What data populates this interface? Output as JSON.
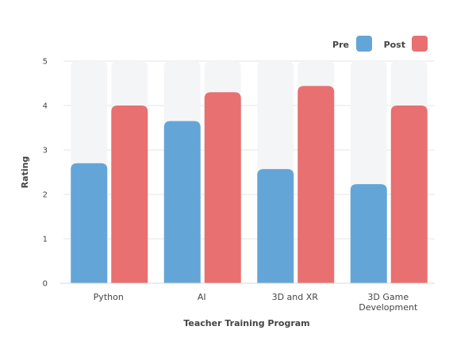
{
  "chart_data": {
    "type": "bar",
    "categories": [
      [
        "Python"
      ],
      [
        "AI"
      ],
      [
        "3D and XR"
      ],
      [
        "3D Game",
        "Development"
      ]
    ],
    "series": [
      {
        "name": "Pre",
        "values": [
          2.7,
          3.65,
          2.57,
          2.23
        ]
      },
      {
        "name": "Post",
        "values": [
          4.0,
          4.3,
          4.44,
          4.0
        ]
      }
    ],
    "title": "",
    "xlabel": "Teacher Training Program",
    "ylabel": "Rating",
    "ylim": [
      0,
      5
    ],
    "yticks": [
      0,
      1,
      2,
      3,
      4,
      5
    ],
    "grid": true,
    "legend_position": "top-right",
    "colors": {
      "Pre": "#64a5d8",
      "Post": "#e87070",
      "track": "#f4f5f7",
      "grid": "#e6e6e6"
    }
  }
}
